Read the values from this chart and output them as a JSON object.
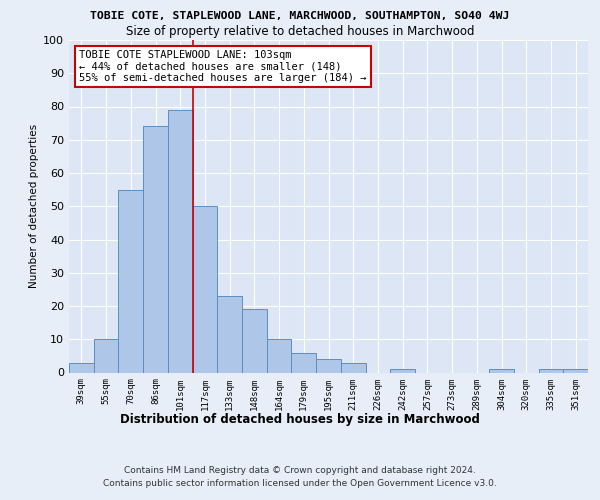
{
  "title_top": "TOBIE COTE, STAPLEWOOD LANE, MARCHWOOD, SOUTHAMPTON, SO40 4WJ",
  "title_sub": "Size of property relative to detached houses in Marchwood",
  "xlabel": "Distribution of detached houses by size in Marchwood",
  "ylabel": "Number of detached properties",
  "categories": [
    "39sqm",
    "55sqm",
    "70sqm",
    "86sqm",
    "101sqm",
    "117sqm",
    "133sqm",
    "148sqm",
    "164sqm",
    "179sqm",
    "195sqm",
    "211sqm",
    "226sqm",
    "242sqm",
    "257sqm",
    "273sqm",
    "289sqm",
    "304sqm",
    "320sqm",
    "335sqm",
    "351sqm"
  ],
  "values": [
    3,
    10,
    55,
    74,
    79,
    50,
    23,
    19,
    10,
    6,
    4,
    3,
    0,
    1,
    0,
    0,
    0,
    1,
    0,
    1,
    1
  ],
  "bar_color": "#aec6e8",
  "bar_edge_color": "#5a8fc2",
  "marker_index": 4,
  "marker_color": "#cc0000",
  "ylim": [
    0,
    100
  ],
  "yticks": [
    0,
    10,
    20,
    30,
    40,
    50,
    60,
    70,
    80,
    90,
    100
  ],
  "annotation_text": "TOBIE COTE STAPLEWOOD LANE: 103sqm\n← 44% of detached houses are smaller (148)\n55% of semi-detached houses are larger (184) →",
  "annotation_box_color": "#ffffff",
  "annotation_box_edge": "#cc0000",
  "footer1": "Contains HM Land Registry data © Crown copyright and database right 2024.",
  "footer2": "Contains public sector information licensed under the Open Government Licence v3.0.",
  "bg_color": "#e8eef7",
  "plot_bg_color": "#dce6f5"
}
